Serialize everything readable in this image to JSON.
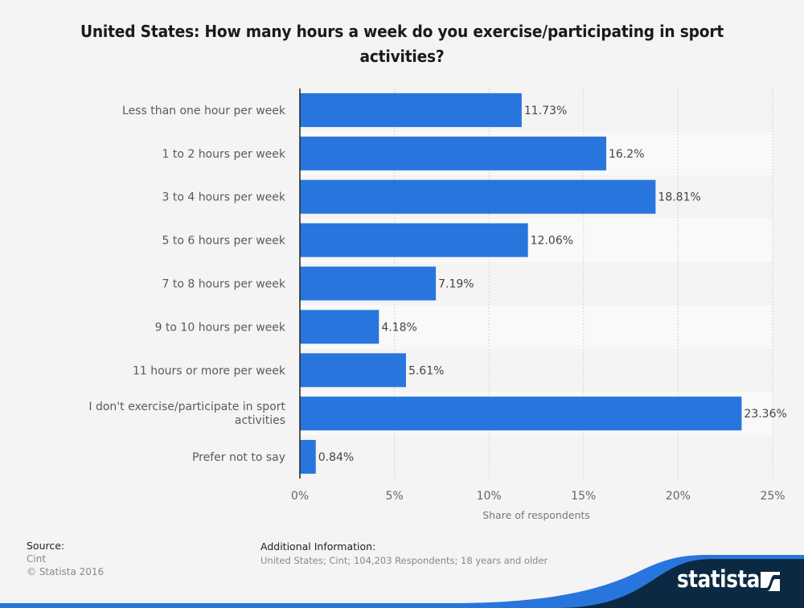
{
  "title": "United States: How many hours a week do you exercise/participating in sport activities?",
  "chart_data": {
    "type": "bar",
    "orientation": "horizontal",
    "title": "United States: How many hours a week do you exercise/participating in sport activities?",
    "categories": [
      "Less than one hour per week",
      "1 to 2 hours per week",
      "3 to 4 hours per week",
      "5 to 6 hours per week",
      "7 to 8 hours per week",
      "9 to 10 hours per week",
      "11 hours or more per week",
      "I don't exercise/participate in sport activities",
      "Prefer not to say"
    ],
    "values": [
      11.73,
      16.2,
      18.81,
      12.06,
      7.19,
      4.18,
      5.61,
      23.36,
      0.84
    ],
    "value_labels": [
      "11.73%",
      "16.2%",
      "18.81%",
      "12.06%",
      "7.19%",
      "4.18%",
      "5.61%",
      "23.36%",
      "0.84%"
    ],
    "xlabel": "Share of respondents",
    "ylabel": "",
    "xlim": [
      0,
      25
    ],
    "xticks": [
      0,
      5,
      10,
      15,
      20,
      25
    ],
    "xtick_labels": [
      "0%",
      "5%",
      "10%",
      "15%",
      "20%",
      "25%"
    ],
    "grid": true,
    "bar_color": "#2876dd"
  },
  "footer": {
    "source_heading": "Source:",
    "source_lines": [
      "Cint",
      "© Statista 2016"
    ],
    "additional_heading": "Additional Information:",
    "additional_text": "United States; Cint; 104,203 Respondents; 18 years and older",
    "brand": "statista"
  },
  "colors": {
    "bar": "#2876dd",
    "footer_dark": "#0b2942",
    "footer_blue": "#2876dd"
  }
}
